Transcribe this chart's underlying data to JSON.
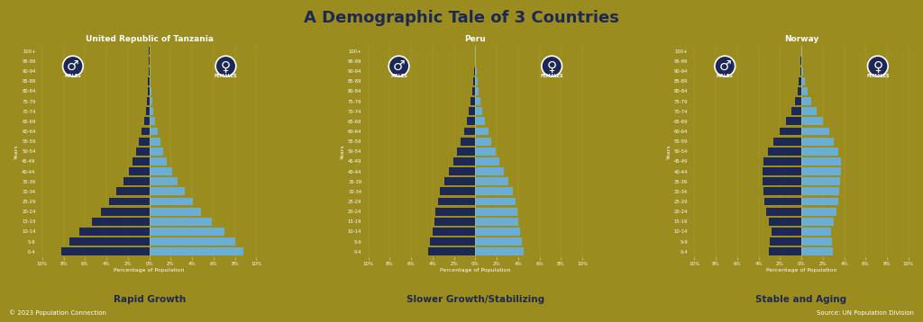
{
  "title": "A Demographic Tale of 3 Countries",
  "bg_color": "#9a8c1e",
  "male_color": "#1e2855",
  "female_color": "#6aaed6",
  "title_color": "#1e2855",
  "label_color": "#ffffff",
  "axis_color": "#c8bc60",
  "copyright": "© 2023 Population Connection",
  "source": "Source: UN Population Division",
  "age_groups": [
    "0-4",
    "5-9",
    "10-14",
    "15-19",
    "20-24",
    "25-29",
    "30-34",
    "35-39",
    "40-44",
    "45-49",
    "50-54",
    "55-59",
    "60-64",
    "65-69",
    "70-74",
    "75-79",
    "80-84",
    "85-89",
    "90-94",
    "95-99",
    "100+"
  ],
  "countries": [
    {
      "name": "United Republic of Tanzania",
      "subtitle": "Rapid Growth",
      "xlim": 10.5,
      "xticks": [
        -10,
        -8,
        -6,
        -4,
        -2,
        0,
        2,
        4,
        6,
        8,
        10
      ],
      "xtick_labels": [
        "10%",
        "8%",
        "6%",
        "4%",
        "2%",
        "0%",
        "2%",
        "4%",
        "6%",
        "8%",
        "10%"
      ],
      "males": [
        8.2,
        7.5,
        6.5,
        5.35,
        4.5,
        3.75,
        3.05,
        2.45,
        1.95,
        1.55,
        1.22,
        0.95,
        0.72,
        0.52,
        0.35,
        0.22,
        0.15,
        0.1,
        0.07,
        0.04,
        0.02
      ],
      "females": [
        8.8,
        8.0,
        7.0,
        5.85,
        4.85,
        4.05,
        3.3,
        2.65,
        2.1,
        1.65,
        1.32,
        1.02,
        0.78,
        0.56,
        0.38,
        0.25,
        0.16,
        0.11,
        0.07,
        0.04,
        0.02
      ]
    },
    {
      "name": "Peru",
      "subtitle": "Slower Growth/Stabilizing",
      "xlim": 10.5,
      "xticks": [
        -10,
        -8,
        -6,
        -4,
        -2,
        0,
        2,
        4,
        6,
        8,
        10
      ],
      "xtick_labels": [
        "10%",
        "8%",
        "6%",
        "4%",
        "2%",
        "0%",
        "2%",
        "4%",
        "6%",
        "8%",
        "10%"
      ],
      "males": [
        4.4,
        4.2,
        3.98,
        3.8,
        3.7,
        3.52,
        3.3,
        2.9,
        2.45,
        2.08,
        1.72,
        1.38,
        1.08,
        0.82,
        0.6,
        0.42,
        0.28,
        0.18,
        0.1,
        0.05,
        0.02
      ],
      "females": [
        4.5,
        4.35,
        4.2,
        4.05,
        3.95,
        3.75,
        3.52,
        3.08,
        2.65,
        2.25,
        1.88,
        1.52,
        1.2,
        0.92,
        0.68,
        0.48,
        0.32,
        0.2,
        0.12,
        0.06,
        0.03
      ]
    },
    {
      "name": "Norway",
      "subtitle": "Stable and Aging",
      "xlim": 10.5,
      "xticks": [
        -10,
        -8,
        -6,
        -4,
        -2,
        0,
        2,
        4,
        6,
        8,
        10
      ],
      "xtick_labels": [
        "10%",
        "8%",
        "6%",
        "4%",
        "2%",
        "0%",
        "2%",
        "4%",
        "6%",
        "8%",
        "10%"
      ],
      "males": [
        3.05,
        2.95,
        2.8,
        3.05,
        3.3,
        3.48,
        3.55,
        3.6,
        3.62,
        3.5,
        3.1,
        2.58,
        2.0,
        1.42,
        0.95,
        0.6,
        0.38,
        0.22,
        0.12,
        0.05,
        0.02
      ],
      "females": [
        2.98,
        2.9,
        2.8,
        3.05,
        3.3,
        3.48,
        3.55,
        3.65,
        3.72,
        3.68,
        3.45,
        3.05,
        2.58,
        2.0,
        1.42,
        0.92,
        0.58,
        0.35,
        0.18,
        0.08,
        0.04
      ]
    }
  ]
}
